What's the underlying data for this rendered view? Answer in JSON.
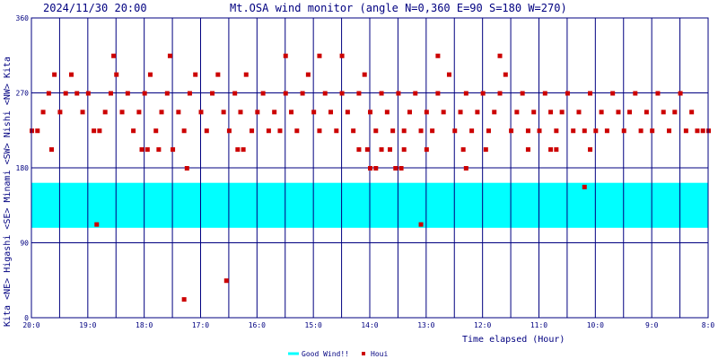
{
  "header": {
    "timestamp": "2024/11/30 20:00",
    "title": "Mt.OSA wind monitor (angle N=0,360 E=90 S=180 W=270)"
  },
  "side_label": "Kita <NE> Higashi <SE> Minami <SW> Nishi <NW> Kita",
  "chart_data": {
    "type": "scatter",
    "title": "Mt.OSA wind monitor (angle N=0,360 E=90 S=180 W=270)",
    "xlabel": "Time elapsed (Hour)",
    "ylabel": "Kita <NE> Higashi <SE> Minami <SW> Nishi <NW> Kita",
    "x_ticks": [
      "20:0",
      "19:0",
      "18:0",
      "17:0",
      "16:0",
      "15:0",
      "14:0",
      "13:0",
      "12:0",
      "11:0",
      "10:0",
      "9:0",
      "8:0"
    ],
    "xlim": [
      0,
      12
    ],
    "y_ticks": [
      0,
      90,
      180,
      270,
      360
    ],
    "ylim": [
      0,
      360
    ],
    "grid": true,
    "good_wind_band": {
      "label": "Good Wind!!",
      "y_range": [
        108,
        162
      ],
      "color": "#00ffff"
    },
    "series": [
      {
        "name": "Houi",
        "color": "#cc0000",
        "base_direction": 247.5,
        "points": [
          [
            0.0,
            225
          ],
          [
            0.1,
            225
          ],
          [
            0.2,
            247.5
          ],
          [
            0.3,
            270
          ],
          [
            0.4,
            292.5
          ],
          [
            0.5,
            247.5
          ],
          [
            0.6,
            270
          ],
          [
            0.7,
            292.5
          ],
          [
            0.8,
            270
          ],
          [
            0.9,
            247.5
          ],
          [
            1.0,
            270
          ],
          [
            1.1,
            225
          ],
          [
            1.2,
            225
          ],
          [
            1.3,
            247.5
          ],
          [
            1.4,
            270
          ],
          [
            1.5,
            292.5
          ],
          [
            1.6,
            247.5
          ],
          [
            1.7,
            270
          ],
          [
            1.8,
            225
          ],
          [
            1.9,
            247.5
          ],
          [
            2.0,
            270
          ],
          [
            2.1,
            292.5
          ],
          [
            2.2,
            225
          ],
          [
            2.3,
            247.5
          ],
          [
            2.4,
            270
          ],
          [
            2.5,
            202.5
          ],
          [
            2.6,
            247.5
          ],
          [
            2.7,
            225
          ],
          [
            2.8,
            270
          ],
          [
            2.9,
            292.5
          ],
          [
            3.0,
            247.5
          ],
          [
            3.1,
            225
          ],
          [
            3.2,
            270
          ],
          [
            3.3,
            292.5
          ],
          [
            3.4,
            247.5
          ],
          [
            3.5,
            225
          ],
          [
            3.6,
            270
          ],
          [
            3.7,
            247.5
          ],
          [
            3.8,
            292.5
          ],
          [
            3.9,
            225
          ],
          [
            4.0,
            247.5
          ],
          [
            4.1,
            270
          ],
          [
            4.2,
            225
          ],
          [
            4.3,
            247.5
          ],
          [
            4.4,
            225
          ],
          [
            4.5,
            270
          ],
          [
            4.6,
            247.5
          ],
          [
            4.7,
            225
          ],
          [
            4.8,
            270
          ],
          [
            4.9,
            292.5
          ],
          [
            5.0,
            247.5
          ],
          [
            5.1,
            225
          ],
          [
            5.2,
            270
          ],
          [
            5.3,
            247.5
          ],
          [
            5.4,
            225
          ],
          [
            5.5,
            270
          ],
          [
            5.6,
            247.5
          ],
          [
            5.7,
            225
          ],
          [
            5.8,
            270
          ],
          [
            5.9,
            292.5
          ],
          [
            6.0,
            247.5
          ],
          [
            6.1,
            225
          ],
          [
            6.2,
            270
          ],
          [
            6.3,
            247.5
          ],
          [
            6.4,
            225
          ],
          [
            6.5,
            270
          ],
          [
            6.6,
            225
          ],
          [
            6.7,
            247.5
          ],
          [
            6.8,
            270
          ],
          [
            6.9,
            225
          ],
          [
            7.0,
            247.5
          ],
          [
            7.1,
            225
          ],
          [
            7.2,
            270
          ],
          [
            7.3,
            247.5
          ],
          [
            7.4,
            292.5
          ],
          [
            7.5,
            225
          ],
          [
            7.6,
            247.5
          ],
          [
            7.7,
            270
          ],
          [
            7.8,
            225
          ],
          [
            7.9,
            247.5
          ],
          [
            8.0,
            270
          ],
          [
            8.1,
            225
          ],
          [
            8.2,
            247.5
          ],
          [
            8.3,
            270
          ],
          [
            8.4,
            292.5
          ],
          [
            8.5,
            225
          ],
          [
            8.6,
            247.5
          ],
          [
            8.7,
            270
          ],
          [
            8.8,
            225
          ],
          [
            8.9,
            247.5
          ],
          [
            9.0,
            225
          ],
          [
            9.1,
            270
          ],
          [
            9.2,
            247.5
          ],
          [
            9.3,
            225
          ],
          [
            9.4,
            247.5
          ],
          [
            9.5,
            270
          ],
          [
            9.6,
            225
          ],
          [
            9.7,
            247.5
          ],
          [
            9.8,
            225
          ],
          [
            9.9,
            270
          ],
          [
            10.0,
            225
          ],
          [
            10.1,
            247.5
          ],
          [
            10.2,
            225
          ],
          [
            10.3,
            270
          ],
          [
            10.4,
            247.5
          ],
          [
            10.5,
            225
          ],
          [
            10.6,
            247.5
          ],
          [
            10.7,
            270
          ],
          [
            10.8,
            225
          ],
          [
            10.9,
            247.5
          ],
          [
            11.0,
            225
          ],
          [
            11.1,
            270
          ],
          [
            11.2,
            247.5
          ],
          [
            11.3,
            225
          ],
          [
            11.4,
            247.5
          ],
          [
            11.5,
            270
          ],
          [
            11.6,
            225
          ],
          [
            11.7,
            247.5
          ],
          [
            11.8,
            225
          ],
          [
            11.9,
            225
          ],
          [
            12.0,
            225
          ],
          [
            0.35,
            202.5
          ],
          [
            1.15,
            112.5
          ],
          [
            1.45,
            315
          ],
          [
            1.95,
            202.5
          ],
          [
            2.05,
            202.5
          ],
          [
            2.25,
            202.5
          ],
          [
            2.45,
            315
          ],
          [
            2.75,
            180
          ],
          [
            2.7,
            22.5
          ],
          [
            3.45,
            45
          ],
          [
            3.65,
            202.5
          ],
          [
            3.75,
            202.5
          ],
          [
            4.5,
            315
          ],
          [
            5.1,
            315
          ],
          [
            5.5,
            315
          ],
          [
            5.8,
            202.5
          ],
          [
            5.95,
            202.5
          ],
          [
            6.0,
            180
          ],
          [
            6.1,
            180
          ],
          [
            6.2,
            202.5
          ],
          [
            6.35,
            202.5
          ],
          [
            6.45,
            180
          ],
          [
            6.6,
            202.5
          ],
          [
            6.55,
            180
          ],
          [
            6.9,
            112.5
          ],
          [
            7.0,
            202.5
          ],
          [
            7.2,
            315
          ],
          [
            7.65,
            202.5
          ],
          [
            7.7,
            180
          ],
          [
            8.05,
            202.5
          ],
          [
            8.3,
            315
          ],
          [
            8.8,
            202.5
          ],
          [
            9.2,
            202.5
          ],
          [
            9.3,
            202.5
          ],
          [
            9.8,
            157.5
          ],
          [
            9.9,
            202.5
          ]
        ]
      }
    ],
    "legend": [
      {
        "label": "Good Wind!!",
        "color": "#00ffff",
        "kind": "line"
      },
      {
        "label": "Houi",
        "color": "#cc0000",
        "kind": "square"
      }
    ],
    "legend_position": "bottom-center"
  }
}
